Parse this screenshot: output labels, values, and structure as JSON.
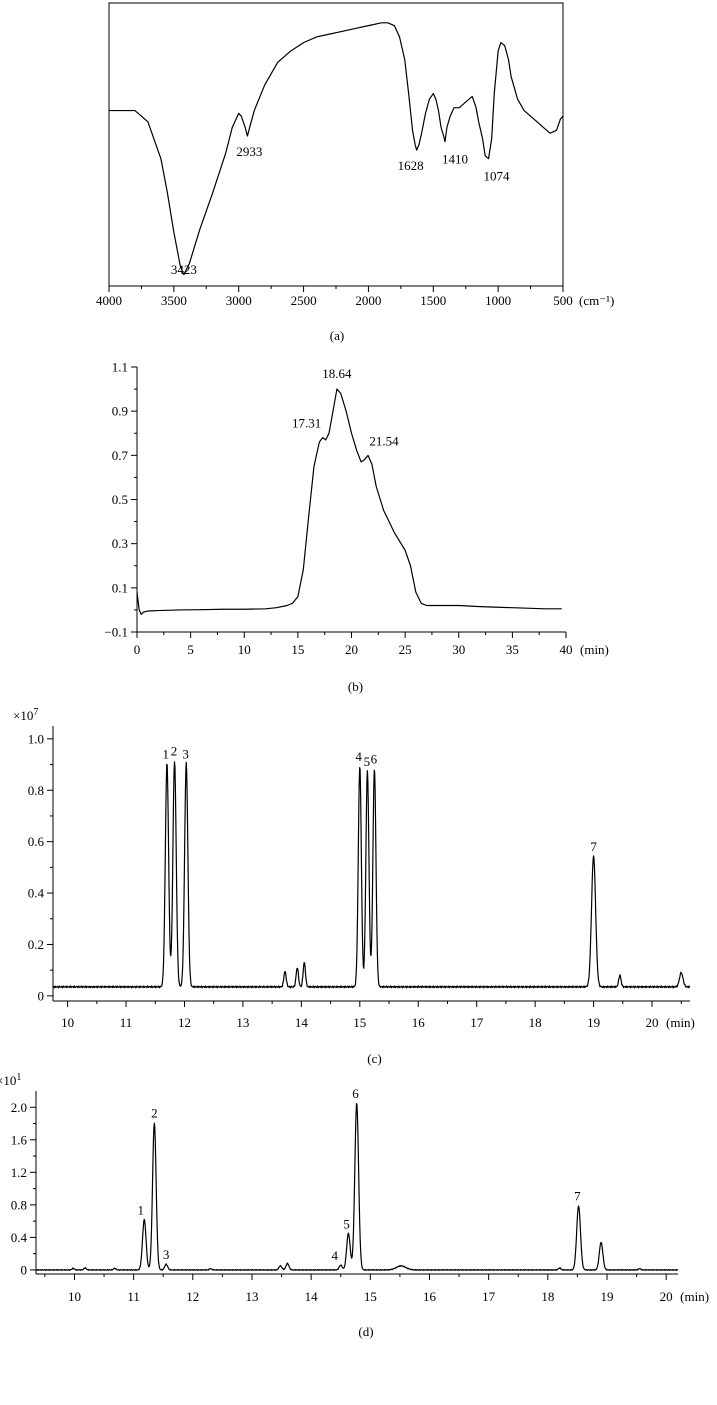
{
  "chart_data": [
    {
      "panel": "(a)",
      "type": "line",
      "x_unit": "(cm⁻¹)",
      "xlim": [
        4000,
        500
      ],
      "x_ticks": [
        4000,
        3500,
        3000,
        2500,
        2000,
        1500,
        1000,
        500
      ],
      "grid": false,
      "y_axis_visible": false,
      "annotations": [
        {
          "label": "3423",
          "x": 3423
        },
        {
          "label": "2933",
          "x": 2933
        },
        {
          "label": "1628",
          "x": 1628
        },
        {
          "label": "1410",
          "x": 1410
        },
        {
          "label": "1074",
          "x": 1074
        }
      ],
      "series": [
        {
          "x": [
            4000,
            3800,
            3700,
            3600,
            3550,
            3500,
            3450,
            3423,
            3380,
            3300,
            3200,
            3100,
            3050,
            3000,
            2980,
            2950,
            2933,
            2910,
            2880,
            2800,
            2700,
            2600,
            2500,
            2400,
            2300,
            2200,
            2100,
            2000,
            1900,
            1850,
            1800,
            1760,
            1720,
            1690,
            1660,
            1640,
            1628,
            1610,
            1590,
            1560,
            1530,
            1500,
            1480,
            1460,
            1440,
            1420,
            1410,
            1395,
            1370,
            1340,
            1300,
            1250,
            1200,
            1170,
            1150,
            1120,
            1100,
            1074,
            1050,
            1030,
            1000,
            980,
            950,
            920,
            900,
            850,
            800,
            750,
            700,
            650,
            600,
            550,
            520,
            500
          ],
          "y": [
            0.62,
            0.62,
            0.58,
            0.45,
            0.33,
            0.19,
            0.07,
            0.04,
            0.08,
            0.2,
            0.33,
            0.47,
            0.56,
            0.61,
            0.6,
            0.56,
            0.53,
            0.57,
            0.62,
            0.71,
            0.79,
            0.83,
            0.86,
            0.88,
            0.89,
            0.9,
            0.91,
            0.92,
            0.93,
            0.93,
            0.92,
            0.88,
            0.8,
            0.68,
            0.55,
            0.5,
            0.48,
            0.5,
            0.54,
            0.61,
            0.66,
            0.68,
            0.66,
            0.62,
            0.56,
            0.53,
            0.51,
            0.56,
            0.6,
            0.63,
            0.63,
            0.65,
            0.67,
            0.63,
            0.58,
            0.52,
            0.46,
            0.45,
            0.52,
            0.68,
            0.83,
            0.86,
            0.85,
            0.8,
            0.74,
            0.66,
            0.62,
            0.6,
            0.58,
            0.56,
            0.54,
            0.55,
            0.59,
            0.6
          ]
        }
      ]
    },
    {
      "panel": "(b)",
      "type": "line",
      "x_unit": "(min)",
      "xlim": [
        0,
        40
      ],
      "ylim": [
        -0.1,
        1.1
      ],
      "x_ticks": [
        0,
        5,
        10,
        15,
        20,
        25,
        30,
        35,
        40
      ],
      "y_ticks": [
        "−0.1",
        "0.1",
        "0.3",
        "0.5",
        "0.7",
        "0.9",
        "1.1"
      ],
      "y_tick_values": [
        -0.1,
        0.1,
        0.3,
        0.5,
        0.7,
        0.9,
        1.1
      ],
      "grid": false,
      "annotations": [
        {
          "label": "17.31",
          "x": 17.31
        },
        {
          "label": "18.64",
          "x": 18.64
        },
        {
          "label": "21.54",
          "x": 21.54
        }
      ],
      "series": [
        {
          "x": [
            0,
            0.2,
            0.4,
            0.6,
            1.0,
            2,
            4,
            6,
            8,
            10,
            12,
            13,
            14,
            14.5,
            15,
            15.5,
            16,
            16.5,
            17.0,
            17.31,
            17.6,
            17.9,
            18.2,
            18.64,
            19.0,
            19.5,
            20,
            20.5,
            20.9,
            21.2,
            21.54,
            21.9,
            22.3,
            23,
            24,
            25,
            25.5,
            26,
            26.5,
            27,
            28,
            30,
            32,
            35,
            38,
            39.6
          ],
          "y": [
            0.08,
            0.0,
            -0.02,
            -0.01,
            -0.005,
            -0.003,
            0.0,
            0.001,
            0.003,
            0.003,
            0.005,
            0.01,
            0.02,
            0.03,
            0.06,
            0.18,
            0.42,
            0.65,
            0.76,
            0.78,
            0.77,
            0.8,
            0.88,
            1.0,
            0.98,
            0.9,
            0.8,
            0.72,
            0.67,
            0.68,
            0.7,
            0.66,
            0.56,
            0.45,
            0.35,
            0.27,
            0.2,
            0.08,
            0.03,
            0.02,
            0.02,
            0.02,
            0.015,
            0.01,
            0.005,
            0.005
          ]
        }
      ]
    },
    {
      "panel": "(c)",
      "type": "line",
      "x_unit": "(min)",
      "y_multiplier": "×10",
      "y_multiplier_exp": "7",
      "xlim": [
        9.75,
        20.65
      ],
      "ylim": [
        -0.02,
        1.05
      ],
      "x_ticks": [
        10,
        11,
        12,
        13,
        14,
        15,
        16,
        17,
        18,
        19,
        20
      ],
      "y_ticks": [
        "0",
        "0.2",
        "0.4",
        "0.6",
        "0.8",
        "1.0"
      ],
      "y_tick_values": [
        0,
        0.2,
        0.4,
        0.6,
        0.8,
        1.0
      ],
      "grid": false,
      "baseline": 0.035,
      "annotations": [
        {
          "label": "1",
          "x": 11.68
        },
        {
          "label": "2",
          "x": 11.82
        },
        {
          "label": "3",
          "x": 12.02
        },
        {
          "label": "4",
          "x": 14.98
        },
        {
          "label": "5",
          "x": 15.12
        },
        {
          "label": "6",
          "x": 15.24
        },
        {
          "label": "7",
          "x": 19.0
        }
      ],
      "peaks": [
        {
          "x": 11.7,
          "y": 0.87,
          "w": 0.028
        },
        {
          "x": 11.83,
          "y": 0.88,
          "w": 0.028
        },
        {
          "x": 12.03,
          "y": 0.87,
          "w": 0.028
        },
        {
          "x": 13.72,
          "y": 0.06,
          "w": 0.02
        },
        {
          "x": 13.93,
          "y": 0.075,
          "w": 0.02
        },
        {
          "x": 14.05,
          "y": 0.095,
          "w": 0.02
        },
        {
          "x": 15.0,
          "y": 0.86,
          "w": 0.026
        },
        {
          "x": 15.13,
          "y": 0.84,
          "w": 0.026
        },
        {
          "x": 15.25,
          "y": 0.85,
          "w": 0.026
        },
        {
          "x": 19.0,
          "y": 0.51,
          "w": 0.035
        },
        {
          "x": 19.45,
          "y": 0.045,
          "w": 0.02
        },
        {
          "x": 20.5,
          "y": 0.055,
          "w": 0.03
        }
      ]
    },
    {
      "panel": "(d)",
      "type": "line",
      "x_unit": "(min)",
      "y_multiplier": "×10",
      "y_multiplier_exp": "1",
      "xlim": [
        9.35,
        20.2
      ],
      "ylim": [
        -0.05,
        2.2
      ],
      "x_ticks": [
        10,
        11,
        12,
        13,
        14,
        15,
        16,
        17,
        18,
        19,
        20
      ],
      "y_ticks": [
        "0",
        "0.4",
        "0.8",
        "1.2",
        "1.6",
        "2.0"
      ],
      "y_tick_values": [
        0,
        0.4,
        0.8,
        1.2,
        1.6,
        2.0
      ],
      "grid": false,
      "baseline": 0.0,
      "annotations": [
        {
          "label": "1",
          "x": 11.12
        },
        {
          "label": "2",
          "x": 11.35
        },
        {
          "label": "3",
          "x": 11.55
        },
        {
          "label": "4",
          "x": 14.4
        },
        {
          "label": "5",
          "x": 14.6
        },
        {
          "label": "6",
          "x": 14.75
        },
        {
          "label": "7",
          "x": 18.5
        }
      ],
      "peaks": [
        {
          "x": 9.98,
          "y": 0.02,
          "w": 0.02
        },
        {
          "x": 10.18,
          "y": 0.025,
          "w": 0.02
        },
        {
          "x": 10.68,
          "y": 0.02,
          "w": 0.02
        },
        {
          "x": 11.18,
          "y": 0.62,
          "w": 0.03
        },
        {
          "x": 11.35,
          "y": 1.81,
          "w": 0.03
        },
        {
          "x": 11.55,
          "y": 0.07,
          "w": 0.025
        },
        {
          "x": 12.3,
          "y": 0.015,
          "w": 0.02
        },
        {
          "x": 13.48,
          "y": 0.05,
          "w": 0.025
        },
        {
          "x": 13.6,
          "y": 0.08,
          "w": 0.025
        },
        {
          "x": 14.5,
          "y": 0.06,
          "w": 0.025
        },
        {
          "x": 14.63,
          "y": 0.45,
          "w": 0.03
        },
        {
          "x": 14.77,
          "y": 2.05,
          "w": 0.032
        },
        {
          "x": 15.52,
          "y": 0.05,
          "w": 0.08
        },
        {
          "x": 18.2,
          "y": 0.025,
          "w": 0.02
        },
        {
          "x": 18.52,
          "y": 0.79,
          "w": 0.032
        },
        {
          "x": 18.9,
          "y": 0.34,
          "w": 0.03
        },
        {
          "x": 19.55,
          "y": 0.015,
          "w": 0.02
        }
      ]
    }
  ]
}
